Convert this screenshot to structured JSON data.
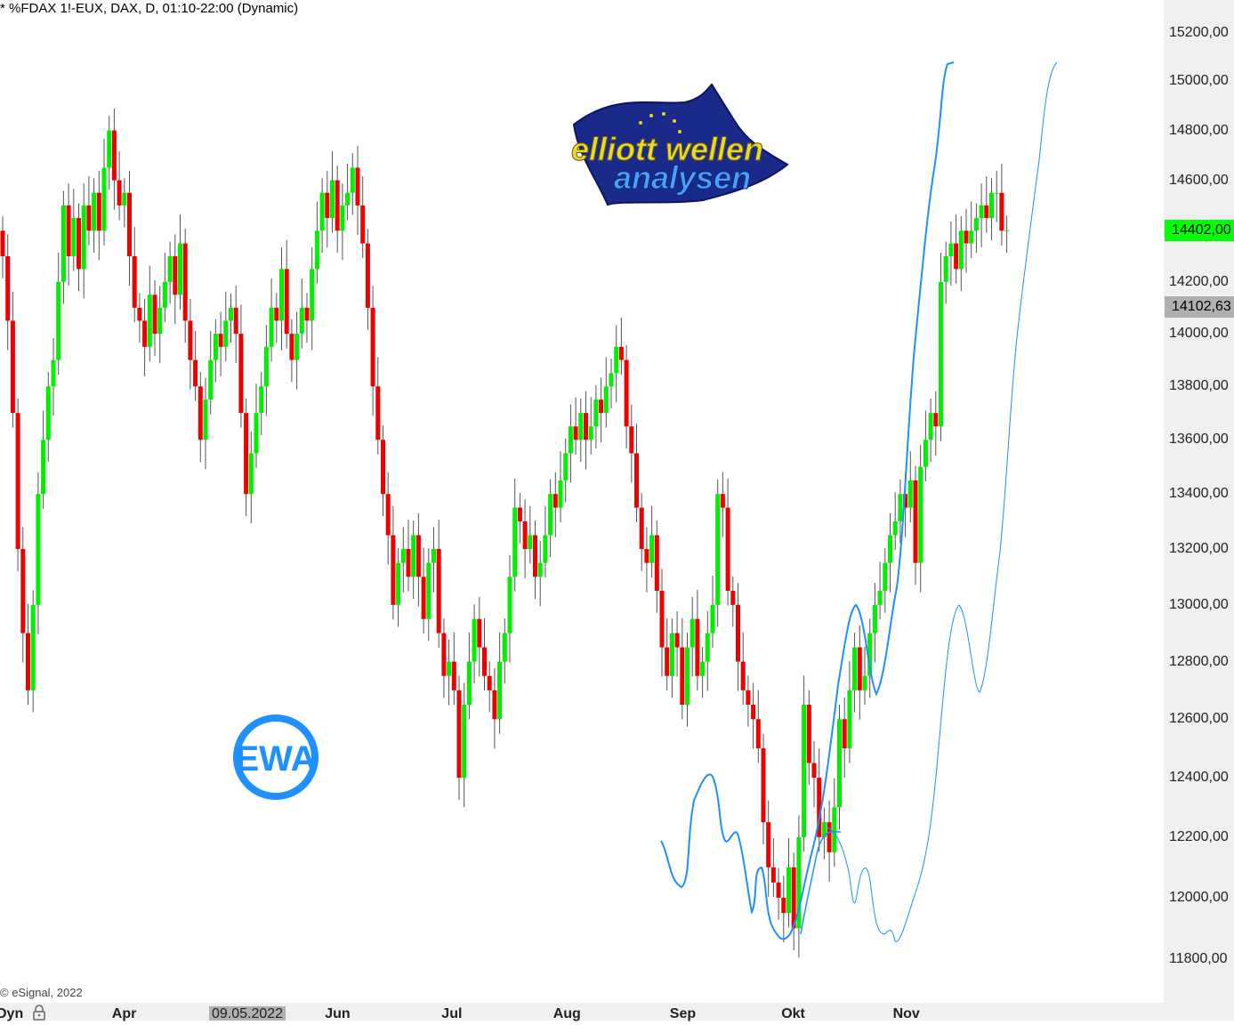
{
  "header": {
    "title": "* %FDAX 1!-EUX, DAX, D, 01:10-22:00 (Dynamic)"
  },
  "footer": {
    "copyright": "© eSignal, 2022",
    "dyn_label": "Dyn",
    "lock_icon": "lock-icon",
    "crosshair_date": "09.05.2022"
  },
  "price_tags": {
    "last": {
      "label": "14402,00",
      "color": "#00ff00"
    },
    "crosshair": {
      "label": "14102,63",
      "color": "#b0b0b0"
    }
  },
  "logos": {
    "top": "elliott wellen analysen",
    "badge": "EWA"
  },
  "colors": {
    "up": "#00ee00",
    "down": "#ee0000",
    "wick": "#555555",
    "projection": "#1e90ff"
  },
  "chart_data": {
    "type": "candlestick",
    "title": "* %FDAX 1!-EUX, DAX, D, 01:10-22:00 (Dynamic)",
    "y_scale": "log",
    "ylim": [
      11750,
      15300
    ],
    "grid": false,
    "y_ticks": [
      "15200,00",
      "15000,00",
      "14800,00",
      "14600,00",
      "14400,00",
      "14200,00",
      "14000,00",
      "13800,00",
      "13600,00",
      "13400,00",
      "13200,00",
      "13000,00",
      "12800,00",
      "12600,00",
      "12400,00",
      "12200,00",
      "12000,00",
      "11800,00"
    ],
    "y_tick_values": [
      15200,
      15000,
      14800,
      14600,
      14400,
      14200,
      14000,
      13800,
      13600,
      13400,
      13200,
      13000,
      12800,
      12600,
      12400,
      12200,
      12000,
      11800
    ],
    "x_ticks": [
      {
        "label": "Apr",
        "index": 24
      },
      {
        "label": "Jun",
        "index": 66
      },
      {
        "label": "Jul",
        "index": 89
      },
      {
        "label": "Aug",
        "index": 111
      },
      {
        "label": "Sep",
        "index": 134
      },
      {
        "label": "Okt",
        "index": 156
      },
      {
        "label": "Nov",
        "index": 178
      }
    ],
    "first_open": 14400,
    "closes": [
      14300,
      14050,
      13700,
      13200,
      12900,
      12700,
      13000,
      13400,
      13600,
      13800,
      13900,
      14200,
      14500,
      14300,
      14450,
      14250,
      14500,
      14400,
      14550,
      14400,
      14650,
      14800,
      14600,
      14500,
      14550,
      14300,
      14100,
      14050,
      13950,
      14150,
      14000,
      14100,
      14200,
      14300,
      14150,
      14350,
      14050,
      13900,
      13800,
      13600,
      13750,
      13900,
      14000,
      13950,
      14050,
      14100,
      14000,
      13700,
      13400,
      13550,
      13700,
      13800,
      13950,
      14100,
      14050,
      14250,
      14000,
      13900,
      14000,
      14100,
      14050,
      14250,
      14400,
      14550,
      14450,
      14600,
      14400,
      14500,
      14550,
      14650,
      14500,
      14350,
      14100,
      13800,
      13600,
      13400,
      13250,
      13000,
      13150,
      13200,
      13100,
      13250,
      13100,
      12950,
      13150,
      13200,
      12900,
      12750,
      12800,
      12700,
      12400,
      12650,
      12800,
      12950,
      12850,
      12750,
      12700,
      12600,
      12800,
      12900,
      13100,
      13350,
      13300,
      13200,
      13250,
      13100,
      13150,
      13250,
      13400,
      13350,
      13450,
      13550,
      13650,
      13600,
      13700,
      13600,
      13650,
      13750,
      13700,
      13800,
      13850,
      13950,
      13900,
      13650,
      13550,
      13350,
      13200,
      13150,
      13250,
      13050,
      12850,
      12750,
      12900,
      12850,
      12650,
      12850,
      12950,
      12750,
      12800,
      12900,
      13000,
      13400,
      13350,
      13050,
      13000,
      12800,
      12700,
      12650,
      12600,
      12500,
      12250,
      12100,
      12050,
      12000,
      11950,
      12100,
      11900,
      12200,
      12650,
      12450,
      12400,
      12200,
      12250,
      12150,
      12300,
      12600,
      12500,
      12700,
      12850,
      12700,
      12750,
      12900,
      13000,
      13050,
      13150,
      13250,
      13300,
      13400,
      13350,
      13450,
      13150,
      13500,
      13600,
      13700,
      13650,
      14200,
      14300,
      14350,
      14250,
      14400,
      14350,
      14400,
      14450,
      14500,
      14450,
      14550,
      14550,
      14400,
      14402
    ]
  }
}
